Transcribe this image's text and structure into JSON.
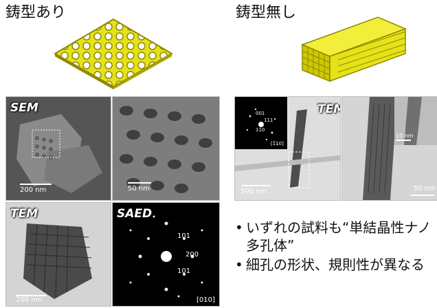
{
  "left": {
    "heading": "鋳型あり",
    "sem_panel": {
      "label": "SEM",
      "scale": "200 nm"
    },
    "sem_zoom_panel": {
      "scale": "50 nm"
    },
    "tem_panel": {
      "label": "TEM",
      "scale": "200 nm"
    },
    "saed_panel": {
      "label": "SAED",
      "spots": [
        "101",
        "200",
        "101"
      ],
      "zone_axis": "[010]"
    }
  },
  "right": {
    "heading": "鋳型無し",
    "tem_panel": {
      "label": "TEM",
      "scale": "500 nm",
      "inset_spots": [
        "001",
        "111",
        "110"
      ],
      "inset_zone_axis": "[1̄10]"
    },
    "zoom_panel": {
      "scale_main": "50 nm",
      "scale_inset": "10 nm"
    }
  },
  "bullets": [
    "いずれの試料も“単結晶性ナノ多孔体”",
    "細孔の形状、規則性が異なる"
  ],
  "colors": {
    "model_yellow": "#e6e21a",
    "model_shadow": "#8f8a00"
  }
}
